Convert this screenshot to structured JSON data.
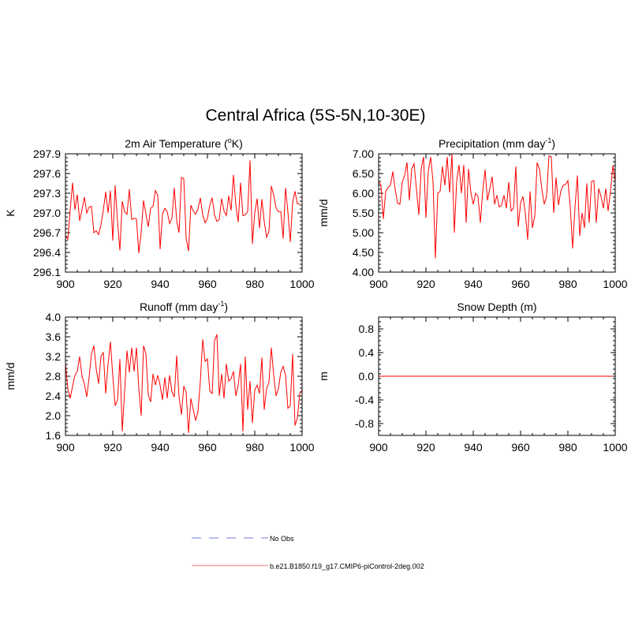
{
  "figure": {
    "title": "Central Africa (5S-5N,10-30E)"
  },
  "chart_data": [
    {
      "type": "line",
      "title": "2m Air Temperature (°K)",
      "title_parts": [
        "2m Air Temperature (",
        "o",
        "K)"
      ],
      "xlabel": "",
      "ylabel": "K",
      "xlim": [
        900,
        1000
      ],
      "ylim": [
        296.1,
        297.9
      ],
      "x_ticks": [
        "900",
        "920",
        "940",
        "960",
        "980",
        "1000"
      ],
      "y_ticks": [
        "296.1",
        "296.4",
        "296.7",
        "297.0",
        "297.3",
        "297.6",
        "297.9"
      ],
      "x_start": 900,
      "series": [
        {
          "name": "b.e21.B1850.f19_g17.CMIP6-piControl-2deg.002",
          "values": [
            296.65,
            296.6,
            297.05,
            297.46,
            297.05,
            297.28,
            296.88,
            297.05,
            297.24,
            297.0,
            297.09,
            297.1,
            296.7,
            296.73,
            296.67,
            296.82,
            297.04,
            297.32,
            297.0,
            297.34,
            296.58,
            297.42,
            296.88,
            296.43,
            297.18,
            297.02,
            296.98,
            297.36,
            296.9,
            296.92,
            296.91,
            296.39,
            296.7,
            297.19,
            296.98,
            296.79,
            297.07,
            297.1,
            297.34,
            297.27,
            296.45,
            296.98,
            297.07,
            297.02,
            296.84,
            296.92,
            297.38,
            296.88,
            296.7,
            297.54,
            297.52,
            296.62,
            296.42,
            297.12,
            297.03,
            296.98,
            297.06,
            297.23,
            296.97,
            296.85,
            296.92,
            297.12,
            297.23,
            296.97,
            296.87,
            296.9,
            297.22,
            297.03,
            296.96,
            297.26,
            297.04,
            297.58,
            297.12,
            296.86,
            297.46,
            296.96,
            296.97,
            297.02,
            297.8,
            296.53,
            297.0,
            297.22,
            296.77,
            297.21,
            296.87,
            296.63,
            296.72,
            297.41,
            297.27,
            297.08,
            297.02,
            297.02,
            296.61,
            297.38,
            297.02,
            296.56,
            297.16,
            297.33,
            297.14,
            297.14
          ]
        }
      ]
    },
    {
      "type": "line",
      "title": "Precipitation (mm day⁻¹)",
      "title_parts": [
        "Precipitation (mm day",
        "-1",
        ")"
      ],
      "xlabel": "",
      "ylabel": "mm/d",
      "xlim": [
        900,
        1000
      ],
      "ylim": [
        4.0,
        7.0
      ],
      "x_ticks": [
        "900",
        "920",
        "940",
        "960",
        "980",
        "1000"
      ],
      "y_ticks": [
        "4.00",
        "4.50",
        "5.00",
        "5.50",
        "6.00",
        "6.50",
        "7.00"
      ],
      "x_start": 900,
      "series": [
        {
          "name": "b.e21.B1850.f19_g17.CMIP6-piControl-2deg.002",
          "values": [
            6.3,
            6.2,
            5.35,
            6.05,
            6.15,
            6.2,
            6.55,
            6.1,
            5.75,
            5.72,
            6.28,
            6.45,
            6.78,
            5.82,
            6.62,
            6.75,
            6.1,
            5.45,
            6.62,
            6.92,
            5.38,
            6.55,
            6.92,
            6.3,
            4.35,
            6.0,
            6.05,
            6.68,
            6.2,
            6.92,
            6.02,
            7.0,
            5.0,
            6.32,
            6.72,
            6.0,
            6.72,
            5.25,
            6.62,
            6.02,
            5.72,
            6.0,
            5.92,
            5.25,
            6.05,
            6.6,
            5.82,
            6.12,
            6.42,
            5.72,
            5.95,
            5.65,
            5.7,
            5.95,
            5.62,
            6.28,
            5.55,
            5.62,
            6.68,
            5.15,
            5.75,
            5.92,
            5.5,
            4.82,
            6.05,
            5.12,
            5.42,
            6.78,
            6.6,
            6.1,
            5.72,
            5.92,
            6.95,
            6.92,
            5.5,
            6.4,
            5.7,
            6.05,
            6.2,
            6.22,
            6.32,
            5.65,
            4.6,
            5.65,
            6.45,
            4.92,
            5.5,
            5.12,
            6.25,
            5.25,
            6.3,
            6.32,
            5.25,
            6.12,
            5.92,
            5.62,
            6.12,
            5.55,
            6.05,
            6.7,
            6.3
          ],
          "values_tail_note": ""
        }
      ]
    },
    {
      "type": "line",
      "title": "Runoff (mm day⁻¹)",
      "title_parts": [
        "Runoff (mm day",
        "-1",
        ")"
      ],
      "xlabel": "",
      "ylabel": "mm/d",
      "xlim": [
        900,
        1000
      ],
      "ylim": [
        1.6,
        4.0
      ],
      "x_ticks": [
        "900",
        "920",
        "940",
        "960",
        "980",
        "1000"
      ],
      "y_ticks": [
        "1.6",
        "2.0",
        "2.4",
        "2.8",
        "3.2",
        "3.6",
        "4.0"
      ],
      "x_start": 900,
      "series": [
        {
          "name": "b.e21.B1850.f19_g17.CMIP6-piControl-2deg.002",
          "values": [
            3.05,
            2.55,
            2.35,
            2.6,
            2.82,
            2.9,
            3.2,
            2.8,
            2.65,
            2.38,
            2.78,
            3.25,
            3.42,
            2.95,
            2.65,
            3.2,
            3.28,
            2.45,
            3.05,
            3.5,
            2.8,
            2.2,
            2.32,
            3.15,
            1.68,
            2.5,
            3.32,
            2.88,
            3.38,
            2.9,
            3.38,
            2.55,
            2.0,
            3.42,
            3.25,
            2.42,
            2.28,
            2.85,
            2.62,
            2.82,
            2.62,
            2.32,
            2.78,
            2.35,
            2.82,
            2.48,
            2.38,
            3.22,
            2.38,
            2.02,
            2.6,
            2.48,
            1.65,
            2.35,
            2.12,
            1.9,
            2.08,
            2.7,
            3.55,
            3.1,
            3.15,
            2.5,
            2.45,
            3.52,
            3.65,
            2.4,
            2.85,
            2.35,
            3.05,
            2.7,
            2.75,
            2.9,
            2.4,
            2.62,
            3.05,
            1.68,
            3.2,
            2.12,
            2.7,
            1.85,
            2.52,
            2.62,
            2.45,
            3.18,
            2.12,
            2.55,
            2.68,
            3.38,
            2.82,
            2.4,
            2.55,
            2.88,
            3.0,
            2.82,
            2.15,
            2.2,
            3.25,
            1.8,
            1.95,
            2.45,
            2.52
          ]
        }
      ]
    },
    {
      "type": "line",
      "title": "Snow Depth (m)",
      "title_parts": [
        "Snow Depth (m)",
        "",
        ""
      ],
      "xlabel": "",
      "ylabel": "m",
      "xlim": [
        900,
        1000
      ],
      "ylim": [
        -1.0,
        1.0
      ],
      "x_ticks": [
        "900",
        "920",
        "940",
        "960",
        "980",
        "1000"
      ],
      "y_ticks": [
        "-0.8",
        "-0.4",
        "0.0",
        "0.4",
        "0.8"
      ],
      "y_tick_values": [
        -0.8,
        -0.4,
        0.0,
        0.4,
        0.8
      ],
      "x_start": 900,
      "series": [
        {
          "name": "b.e21.B1850.f19_g17.CMIP6-piControl-2deg.002",
          "values": [
            0.0,
            0.0
          ]
        }
      ],
      "constant_series": true
    }
  ],
  "legend": {
    "placement": "bottom-center",
    "items": [
      {
        "label": "No Obs",
        "color": "#a3a7f0",
        "style": "dashed"
      },
      {
        "label": "b.e21.B1850.f19_g17.CMIP6-piControl-2deg.002",
        "color": "#f2a0a0",
        "style": "solid"
      }
    ]
  },
  "colors": {
    "series_line": "#ff0000",
    "axis": "#000000"
  }
}
